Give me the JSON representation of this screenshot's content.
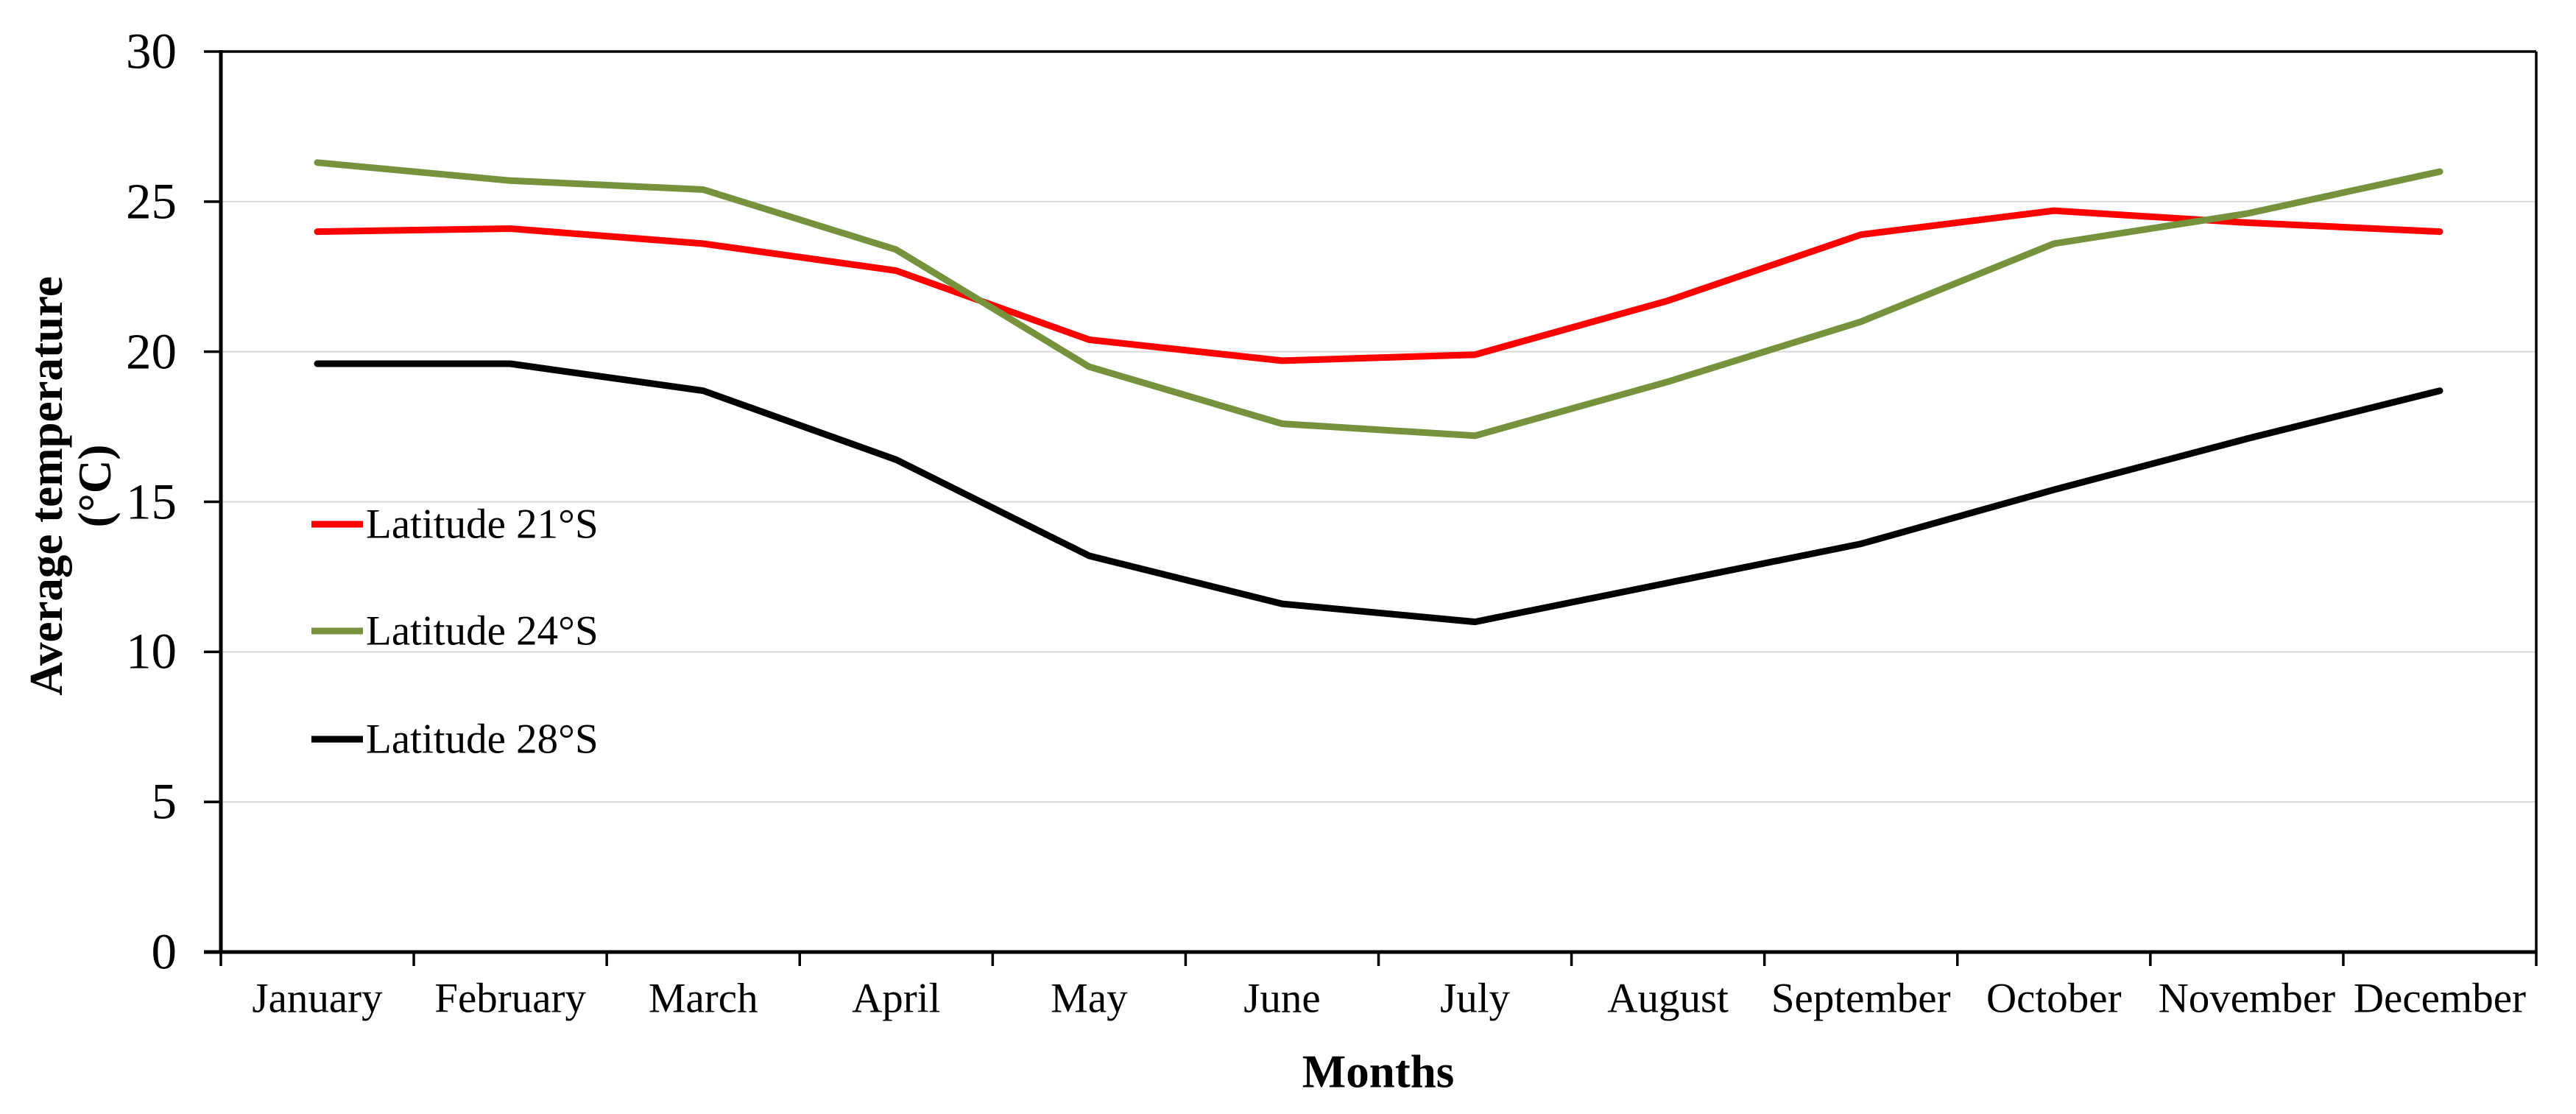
{
  "chart_data": {
    "type": "line",
    "categories": [
      "January",
      "February",
      "March",
      "April",
      "May",
      "June",
      "July",
      "August",
      "September",
      "October",
      "November",
      "December"
    ],
    "series": [
      {
        "name": "Latitude 21°S",
        "color": "#FF0000",
        "values": [
          24.0,
          24.1,
          23.6,
          22.7,
          20.4,
          19.7,
          19.9,
          21.7,
          23.9,
          24.7,
          24.3,
          24.0
        ]
      },
      {
        "name": "Latitude 24°S",
        "color": "#76923C",
        "values": [
          26.3,
          25.7,
          25.4,
          23.4,
          19.5,
          17.6,
          17.2,
          19.0,
          21.0,
          23.6,
          24.6,
          26.0
        ]
      },
      {
        "name": "Latitude 28°S",
        "color": "#000000",
        "values": [
          19.6,
          19.6,
          18.7,
          16.4,
          13.2,
          11.6,
          11.0,
          12.3,
          13.6,
          15.4,
          17.1,
          18.7
        ]
      }
    ],
    "xlabel": "Months",
    "ylabel_line1": "Average temperature",
    "ylabel_line2": "(°C)",
    "ylim": [
      0,
      30
    ],
    "yticks": [
      0,
      5,
      10,
      15,
      20,
      25,
      30
    ],
    "grid": true,
    "gridline_color": "#D9D9D9",
    "axis_color": "#000000",
    "background_color": "#FFFFFF",
    "legend_position": "inside-left",
    "legend_entries": [
      "Latitude 21°S",
      "Latitude 24°S",
      "Latitude 28°S"
    ]
  }
}
